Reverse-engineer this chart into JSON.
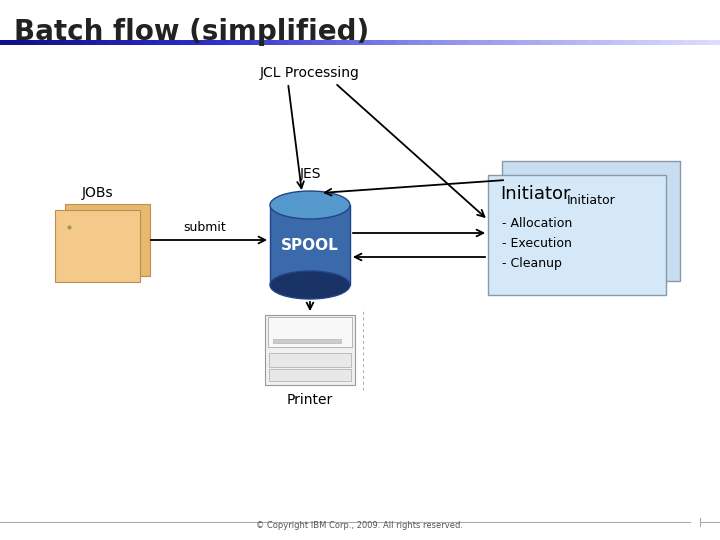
{
  "title": "Batch flow (simplified)",
  "copyright": "© Copyright IBM Corp., 2009. All rights reserved.",
  "bg_color": "#ffffff",
  "title_color": "#222222",
  "title_fontsize": 20,
  "jobs_label": "JOBs",
  "submit_label": "submit",
  "jes_label": "JES",
  "spool_label": "SPOOL",
  "jcl_label": "JCL Processing",
  "printer_label": "Printer",
  "initiator_tab_label": "Initiator",
  "initiator_box_label": "Initiator",
  "initiator_items": [
    "- Allocation",
    "- Execution",
    "- Cleanup"
  ],
  "spool_body_color": "#3a6aaa",
  "spool_top_color": "#5599cc",
  "spool_bottom_color": "#1a3366",
  "jobs_front_color": "#f5c98a",
  "jobs_back_color": "#e8b870",
  "initiator_box_color": "#d4e8f8",
  "initiator_back_color": "#c8ddf0",
  "initiator_border_color": "#8899aa"
}
